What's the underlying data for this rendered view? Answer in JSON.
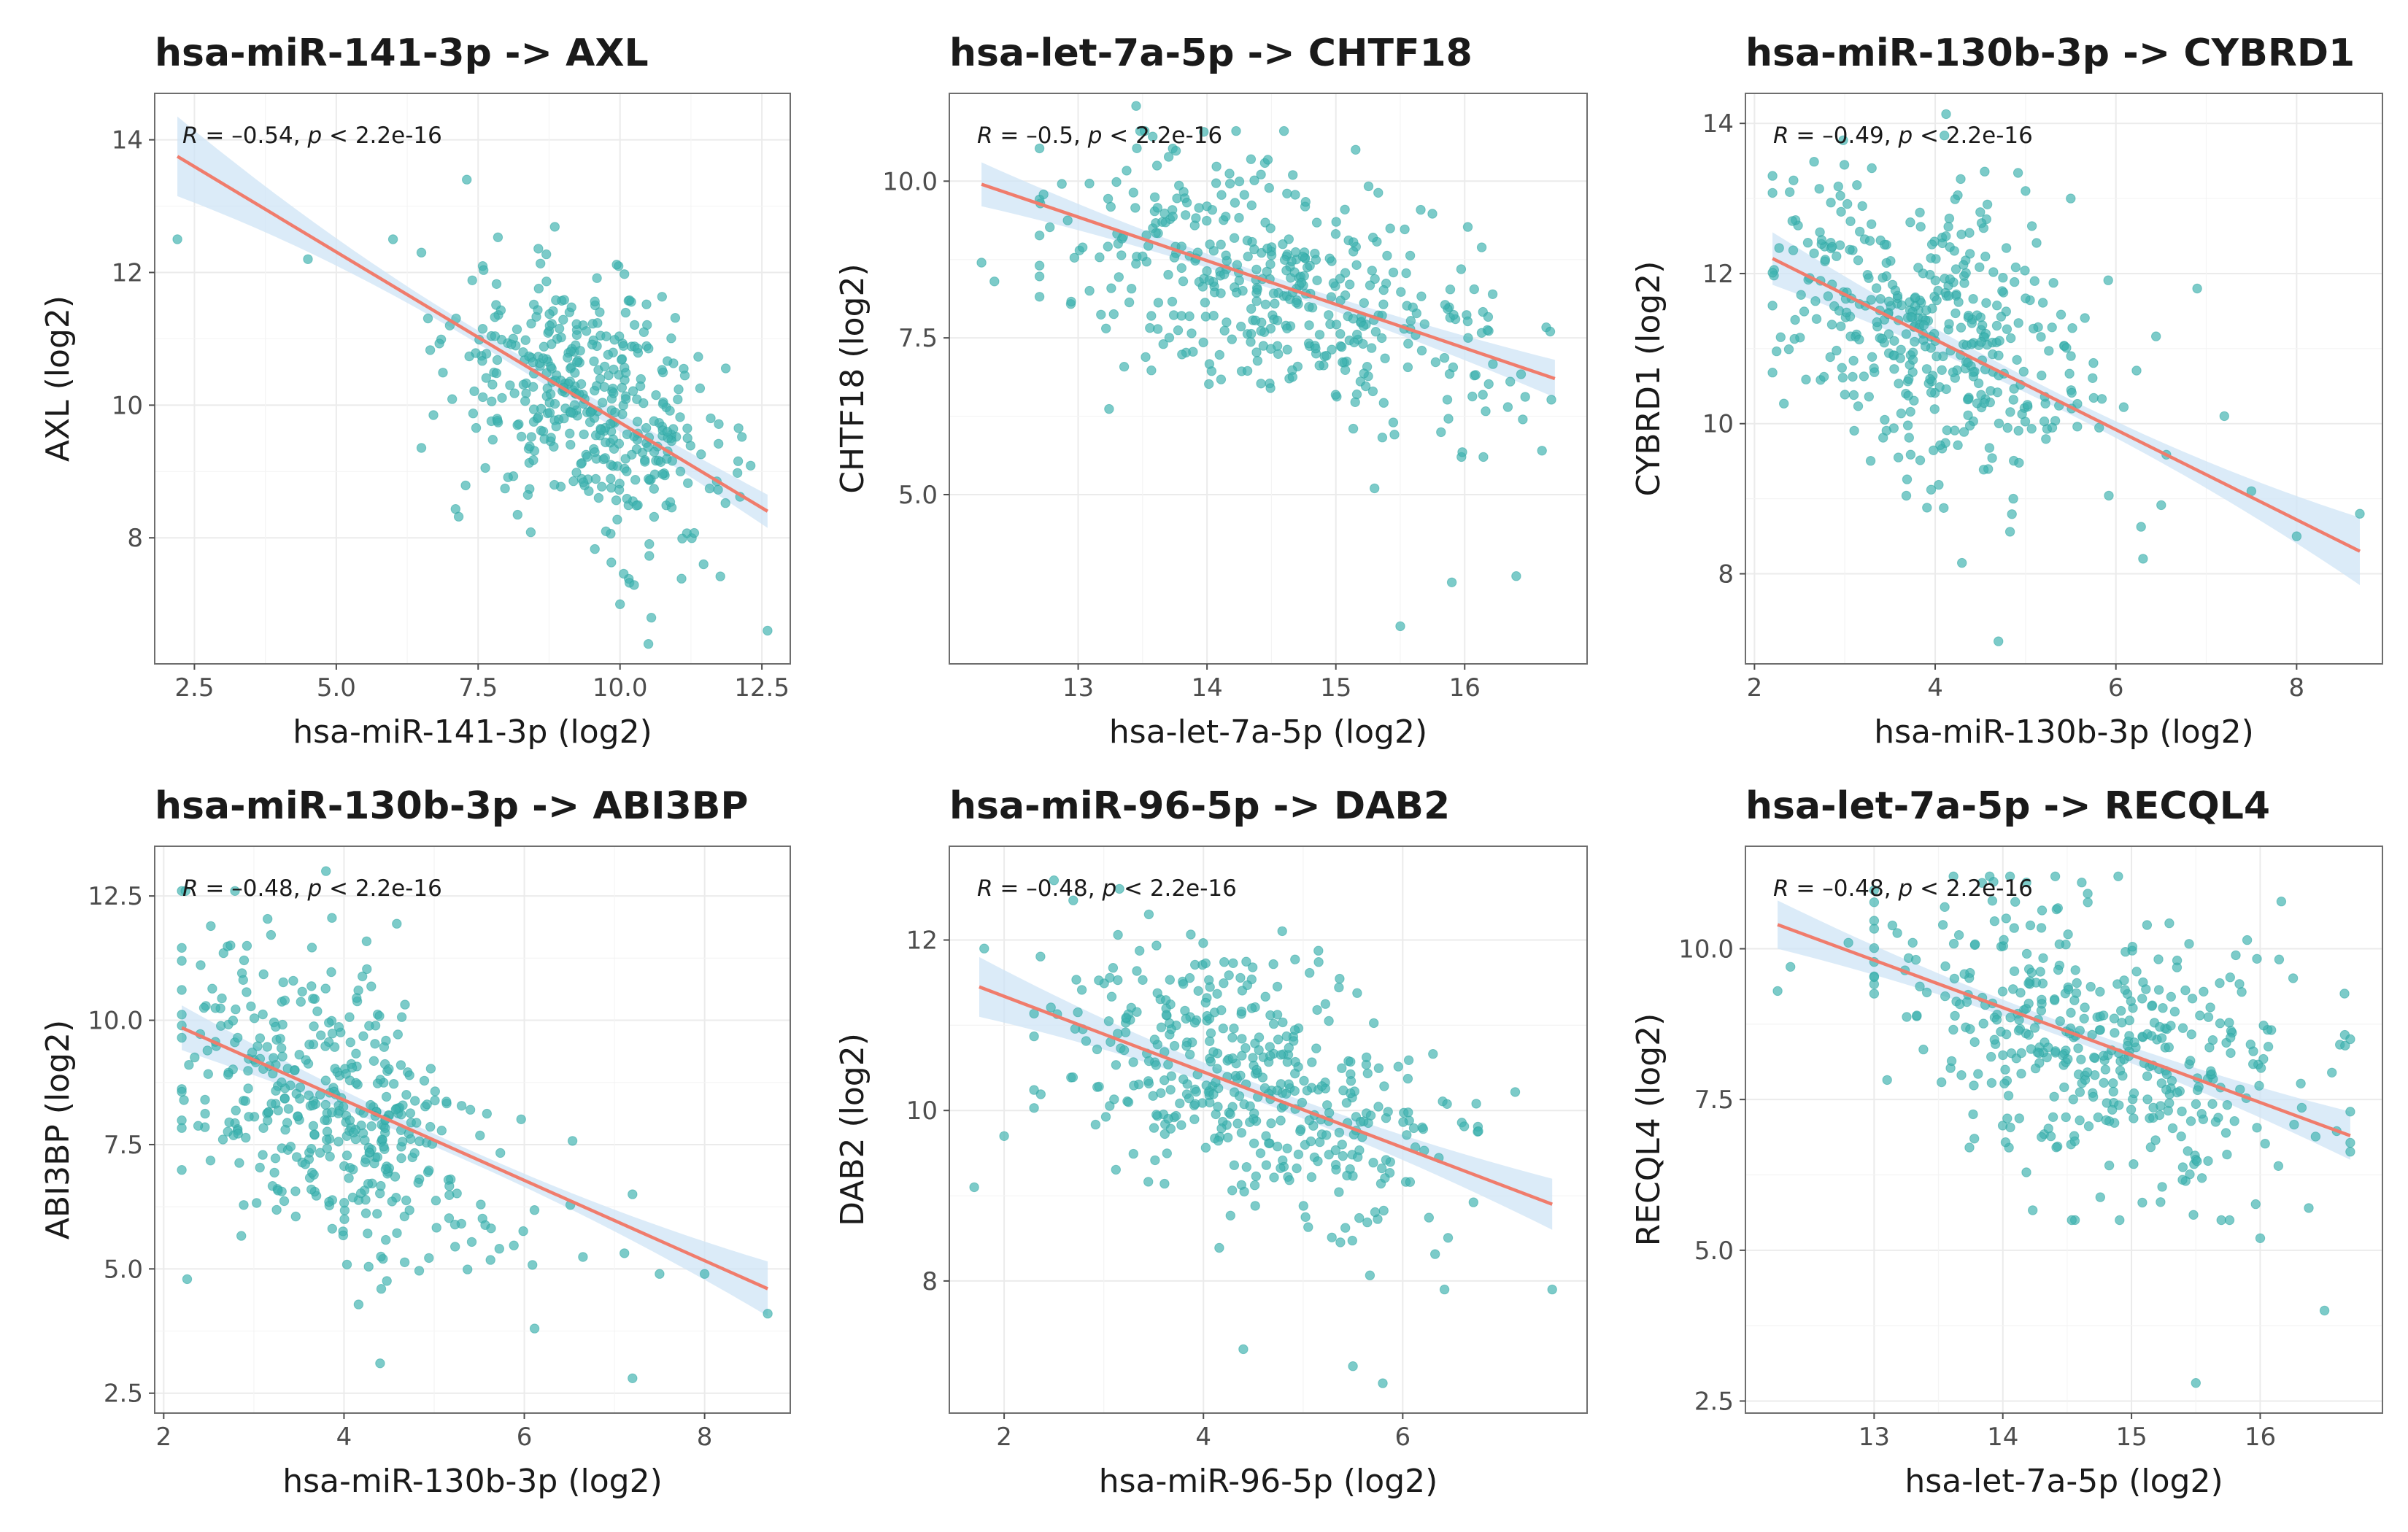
{
  "chart_data": [
    {
      "type": "scatter",
      "title": "hsa-miR-141-3p -> AXL",
      "xlabel": "hsa-miR-141-3p (log2)",
      "ylabel": "AXL (log2)",
      "xlim": [
        1.8,
        13.0
      ],
      "ylim": [
        6.1,
        14.7
      ],
      "xticks": [
        2.5,
        5.0,
        7.5,
        10.0,
        12.5
      ],
      "xtick_labels": [
        "2.5",
        "5.0",
        "7.5",
        "10.0",
        "12.5"
      ],
      "yticks": [
        8,
        10,
        12,
        14
      ],
      "ytick_labels": [
        "8",
        "10",
        "12",
        "14"
      ],
      "stat": {
        "R": "–0.54",
        "p": "2.2e-16"
      },
      "fit": {
        "x": [
          2.2,
          12.6
        ],
        "y": [
          13.75,
          8.4
        ]
      },
      "ci_halfwidth": [
        0.6,
        0.1,
        0.25
      ],
      "cloud": {
        "n": 420,
        "mx": 9.5,
        "sx": 1.2,
        "my": 10.0,
        "sy": 1.0,
        "r": -0.45,
        "xr": [
          6.5,
          12.6
        ],
        "yr": [
          6.4,
          13.4
        ]
      },
      "extra_points": [
        [
          2.2,
          12.5
        ],
        [
          4.5,
          12.2
        ],
        [
          6.5,
          12.3
        ],
        [
          6.0,
          12.5
        ],
        [
          7.3,
          13.4
        ],
        [
          7.0,
          11.2
        ],
        [
          10.5,
          6.4
        ],
        [
          12.6,
          6.6
        ],
        [
          10.0,
          7.0
        ]
      ]
    },
    {
      "type": "scatter",
      "title": "hsa-let-7a-5p -> CHTF18",
      "xlabel": "hsa-let-7a-5p (log2)",
      "ylabel": "CHTF18 (log2)",
      "xlim": [
        12.0,
        16.95
      ],
      "ylim": [
        2.3,
        11.4
      ],
      "xticks": [
        13,
        14,
        15,
        16
      ],
      "xtick_labels": [
        "13",
        "14",
        "15",
        "16"
      ],
      "yticks": [
        5.0,
        7.5,
        10.0
      ],
      "ytick_labels": [
        "5.0",
        "7.5",
        "10.0"
      ],
      "stat": {
        "R": "–0.5",
        "p": "2.2e-16"
      },
      "fit": {
        "x": [
          12.25,
          16.7
        ],
        "y": [
          9.95,
          6.85
        ]
      },
      "ci_halfwidth": [
        0.35,
        0.1,
        0.3
      ],
      "cloud": {
        "n": 420,
        "mx": 14.6,
        "sx": 0.85,
        "my": 8.2,
        "sy": 1.1,
        "r": -0.45,
        "xr": [
          12.7,
          16.7
        ],
        "yr": [
          5.6,
          10.8
        ]
      },
      "extra_points": [
        [
          12.25,
          8.7
        ],
        [
          12.35,
          8.4
        ],
        [
          13.45,
          11.2
        ],
        [
          15.3,
          5.1
        ],
        [
          15.5,
          2.9
        ],
        [
          15.9,
          3.6
        ],
        [
          16.4,
          3.7
        ],
        [
          16.6,
          5.7
        ]
      ]
    },
    {
      "type": "scatter",
      "title": "hsa-miR-130b-3p -> CYBRD1",
      "xlabel": "hsa-miR-130b-3p (log2)",
      "ylabel": "CYBRD1 (log2)",
      "xlim": [
        1.9,
        8.95
      ],
      "ylim": [
        6.8,
        14.4
      ],
      "xticks": [
        2,
        4,
        6,
        8
      ],
      "xtick_labels": [
        "2",
        "4",
        "6",
        "8"
      ],
      "yticks": [
        8,
        10,
        12,
        14
      ],
      "ytick_labels": [
        "8",
        "10",
        "12",
        "14"
      ],
      "stat": {
        "R": "–0.49",
        "p": "2.2e-16"
      },
      "fit": {
        "x": [
          2.2,
          8.7
        ],
        "y": [
          12.2,
          8.3
        ]
      },
      "ci_halfwidth": [
        0.35,
        0.1,
        0.45
      ],
      "cloud": {
        "n": 420,
        "mx": 3.9,
        "sx": 0.9,
        "my": 11.2,
        "sy": 1.1,
        "r": -0.4,
        "xr": [
          2.2,
          7.2
        ],
        "yr": [
          8.0,
          14.2
        ]
      },
      "extra_points": [
        [
          4.7,
          7.1
        ],
        [
          5.0,
          13.1
        ],
        [
          5.5,
          13.0
        ],
        [
          6.3,
          8.2
        ],
        [
          7.2,
          10.1
        ],
        [
          7.5,
          9.1
        ],
        [
          8.0,
          8.5
        ],
        [
          8.7,
          8.8
        ],
        [
          6.9,
          11.8
        ]
      ]
    },
    {
      "type": "scatter",
      "title": "hsa-miR-130b-3p -> ABI3BP",
      "xlabel": "hsa-miR-130b-3p (log2)",
      "ylabel": "ABI3BP (log2)",
      "xlim": [
        1.9,
        8.95
      ],
      "ylim": [
        2.1,
        13.5
      ],
      "xticks": [
        2,
        4,
        6,
        8
      ],
      "xtick_labels": [
        "2",
        "4",
        "6",
        "8"
      ],
      "yticks": [
        2.5,
        5.0,
        7.5,
        10.0,
        12.5
      ],
      "ytick_labels": [
        "2.5",
        "5.0",
        "7.5",
        "10.0",
        "12.5"
      ],
      "stat": {
        "R": "–0.48",
        "p": "2.2e-16"
      },
      "fit": {
        "x": [
          2.2,
          8.7
        ],
        "y": [
          9.85,
          4.6
        ]
      },
      "ci_halfwidth": [
        0.45,
        0.12,
        0.55
      ],
      "cloud": {
        "n": 420,
        "mx": 3.9,
        "sx": 0.9,
        "my": 8.2,
        "sy": 1.6,
        "r": -0.4,
        "xr": [
          2.2,
          7.3
        ],
        "yr": [
          3.8,
          12.6
        ]
      },
      "extra_points": [
        [
          3.8,
          13.0
        ],
        [
          4.4,
          3.1
        ],
        [
          7.2,
          2.8
        ],
        [
          7.2,
          6.5
        ],
        [
          7.5,
          4.9
        ],
        [
          8.0,
          4.9
        ],
        [
          8.7,
          4.1
        ]
      ]
    },
    {
      "type": "scatter",
      "title": "hsa-miR-96-5p -> DAB2",
      "xlabel": "hsa-miR-96-5p (log2)",
      "ylabel": "DAB2 (log2)",
      "xlim": [
        1.45,
        7.85
      ],
      "ylim": [
        6.45,
        13.1
      ],
      "xticks": [
        2,
        4,
        6
      ],
      "xtick_labels": [
        "2",
        "4",
        "6"
      ],
      "yticks": [
        8,
        10,
        12
      ],
      "ytick_labels": [
        "8",
        "10",
        "12"
      ],
      "stat": {
        "R": "–0.48",
        "p": "2.2e-16"
      },
      "fit": {
        "x": [
          1.75,
          7.5
        ],
        "y": [
          11.45,
          8.9
        ]
      },
      "ci_halfwidth": [
        0.35,
        0.1,
        0.3
      ],
      "cloud": {
        "n": 420,
        "mx": 4.5,
        "sx": 1.0,
        "my": 10.3,
        "sy": 0.85,
        "r": -0.4,
        "xr": [
          2.3,
          7.2
        ],
        "yr": [
          7.9,
          12.6
        ]
      },
      "extra_points": [
        [
          1.7,
          9.1
        ],
        [
          1.8,
          11.9
        ],
        [
          2.0,
          9.7
        ],
        [
          2.5,
          12.7
        ],
        [
          4.4,
          7.2
        ],
        [
          5.5,
          7.0
        ],
        [
          5.8,
          6.8
        ],
        [
          7.5,
          7.9
        ]
      ]
    },
    {
      "type": "scatter",
      "title": "hsa-let-7a-5p -> RECQL4",
      "xlabel": "hsa-let-7a-5p (log2)",
      "ylabel": "RECQL4 (log2)",
      "xlim": [
        12.0,
        16.95
      ],
      "ylim": [
        2.3,
        11.7
      ],
      "xticks": [
        13,
        14,
        15,
        16
      ],
      "xtick_labels": [
        "13",
        "14",
        "15",
        "16"
      ],
      "yticks": [
        2.5,
        5.0,
        7.5,
        10.0
      ],
      "ytick_labels": [
        "2.5",
        "5.0",
        "7.5",
        "10.0"
      ],
      "stat": {
        "R": "–0.48",
        "p": "2.2e-16"
      },
      "fit": {
        "x": [
          12.25,
          16.7
        ],
        "y": [
          10.4,
          6.9
        ]
      },
      "ci_halfwidth": [
        0.4,
        0.12,
        0.4
      ],
      "cloud": {
        "n": 420,
        "mx": 14.7,
        "sx": 0.85,
        "my": 8.5,
        "sy": 1.2,
        "r": -0.4,
        "xr": [
          13.0,
          16.7
        ],
        "yr": [
          5.5,
          11.2
        ]
      },
      "extra_points": [
        [
          12.25,
          9.3
        ],
        [
          12.35,
          9.7
        ],
        [
          12.8,
          10.1
        ],
        [
          15.5,
          2.8
        ],
        [
          16.0,
          5.2
        ],
        [
          16.5,
          4.0
        ],
        [
          16.7,
          8.5
        ]
      ]
    }
  ]
}
